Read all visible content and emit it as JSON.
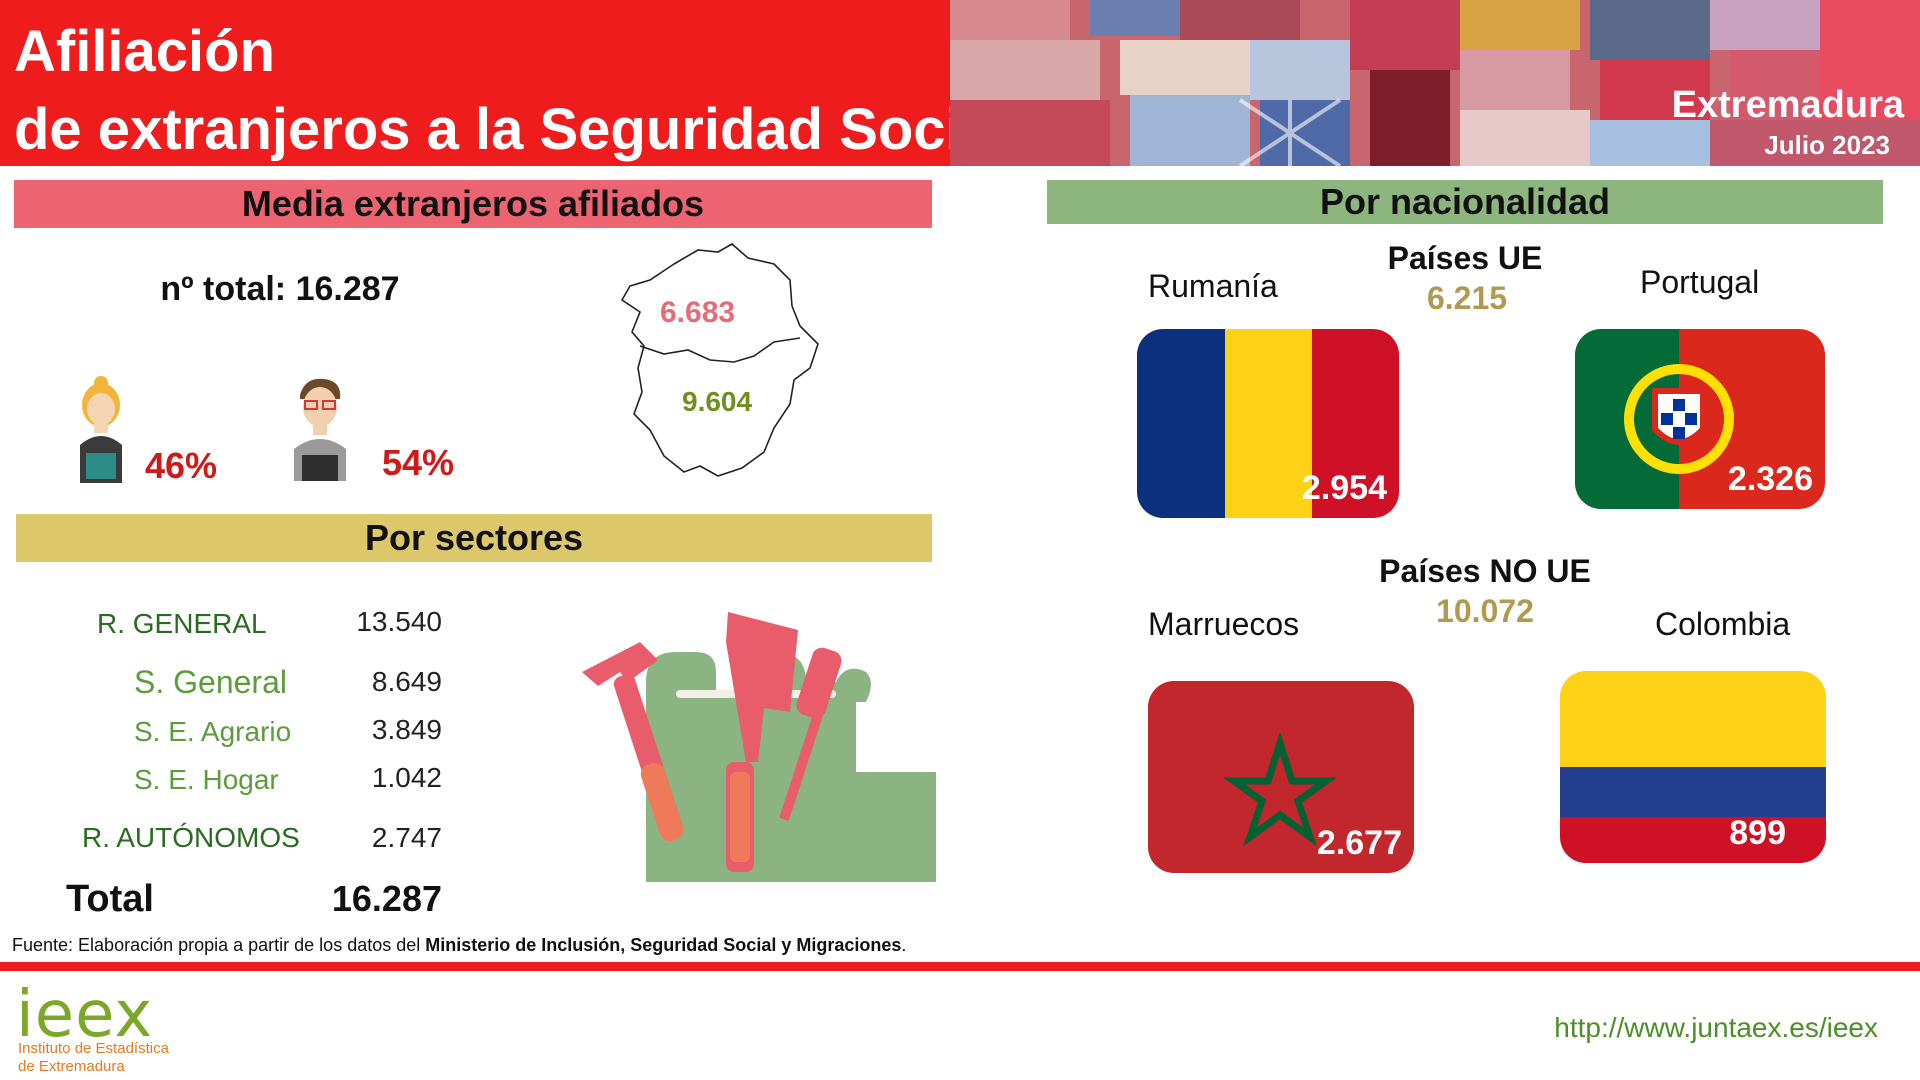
{
  "header": {
    "title_line1": "Afiliación",
    "title_line2": "de extranjeros a la Seguridad Social",
    "region": "Extremadura",
    "date": "Julio 2023"
  },
  "media": {
    "section_title": "Media extranjeros afiliados",
    "total_line": "nº total: 16.287",
    "female_pct": "46%",
    "male_pct": "54%",
    "map_north_value": "6.683",
    "map_south_value": "9.604"
  },
  "sectores": {
    "section_title": "Por sectores",
    "rows": [
      {
        "label": "R. GENERAL",
        "value": "13.540"
      },
      {
        "label": "S. General",
        "value": "8.649"
      },
      {
        "label": "S. E. Agrario",
        "value": "3.849"
      },
      {
        "label": "S. E. Hogar",
        "value": "1.042"
      },
      {
        "label": "R. AUTÓNOMOS",
        "value": "2.747"
      }
    ],
    "total_label": "Total",
    "total_value": "16.287"
  },
  "nacionalidad": {
    "section_title": "Por nacionalidad",
    "ue": {
      "title": "Países UE",
      "value": "6.215"
    },
    "no_ue": {
      "title": "Países NO UE",
      "value": "10.072"
    },
    "countries": [
      {
        "name": "Rumanía",
        "value": "2.954"
      },
      {
        "name": "Portugal",
        "value": "2.326"
      },
      {
        "name": "Marruecos",
        "value": "2.677"
      },
      {
        "name": "Colombia",
        "value": "899"
      }
    ]
  },
  "footer": {
    "source_prefix": "Fuente: Elaboración propia a partir de los datos del ",
    "source_bold": "Ministerio de Inclusión, Seguridad Social y Migraciones",
    "source_suffix": ".",
    "logo_word": "ieex",
    "logo_sub1": "Instituto de Estadística",
    "logo_sub2": "de Extremadura",
    "url": "http://www.juntaex.es/ieex"
  },
  "colors": {
    "header_red": "#ee1c1c",
    "media_band": "#ec6471",
    "sectores_band": "#dcc76a",
    "nacionalidad_band": "#8db57e"
  }
}
